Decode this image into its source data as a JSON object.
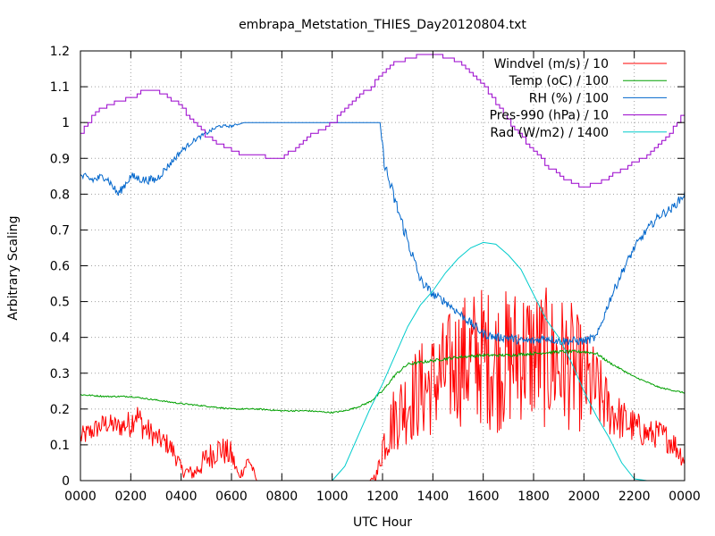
{
  "chart_data": {
    "type": "line",
    "title": "embrapa_Metstation_THIES_Day20120804.txt",
    "xlabel": "UTC Hour",
    "ylabel": "Arbitrary Scaling",
    "xlim": [
      0,
      24
    ],
    "ylim": [
      0,
      1.2
    ],
    "grid": true,
    "legend_position": "top-right",
    "x_tick_labels": [
      "0000",
      "0200",
      "0400",
      "0600",
      "0800",
      "1000",
      "1200",
      "1400",
      "1600",
      "1800",
      "2000",
      "2200",
      "0000"
    ],
    "y_tick_labels": [
      "0",
      "0.1",
      "0.2",
      "0.3",
      "0.4",
      "0.5",
      "0.6",
      "0.7",
      "0.8",
      "0.9",
      "1",
      "1.1",
      "1.2"
    ],
    "series": [
      {
        "name": "Windvel (m/s) / 10",
        "color": "#ff0000",
        "x": [
          0,
          0.5,
          1,
          1.5,
          2,
          2.2,
          2.5,
          3,
          3.5,
          3.8,
          4,
          4.5,
          5,
          5.5,
          6,
          6.3,
          6.7,
          7,
          9,
          10,
          10.5,
          11,
          11.5,
          11.8,
          12,
          12.5,
          13,
          13.5,
          14,
          14.5,
          15,
          15.5,
          16,
          16.5,
          17,
          17.5,
          18,
          18.5,
          19,
          19.5,
          20,
          20.5,
          21,
          21.5,
          22,
          22.5,
          23,
          23.5,
          24
        ],
        "y": [
          0.12,
          0.14,
          0.16,
          0.15,
          0.16,
          0.19,
          0.15,
          0.12,
          0.1,
          0.07,
          0.03,
          0.02,
          0.06,
          0.09,
          0.07,
          0.01,
          0.06,
          0,
          0,
          0,
          0,
          0,
          0,
          0.02,
          0.1,
          0.18,
          0.22,
          0.25,
          0.27,
          0.3,
          0.33,
          0.34,
          0.35,
          0.33,
          0.34,
          0.36,
          0.35,
          0.34,
          0.33,
          0.32,
          0.28,
          0.25,
          0.2,
          0.17,
          0.15,
          0.13,
          0.13,
          0.11,
          0.06
        ],
        "noise": [
          0.03,
          0.03,
          0.03,
          0.03,
          0.04,
          0.04,
          0.04,
          0.03,
          0.03,
          0.03,
          0.02,
          0.02,
          0.04,
          0.04,
          0.04,
          0.01,
          0.03,
          0,
          0,
          0,
          0,
          0,
          0,
          0.02,
          0.06,
          0.1,
          0.12,
          0.14,
          0.15,
          0.16,
          0.18,
          0.2,
          0.2,
          0.2,
          0.2,
          0.2,
          0.2,
          0.2,
          0.2,
          0.18,
          0.15,
          0.12,
          0.08,
          0.06,
          0.05,
          0.04,
          0.04,
          0.04,
          0.03
        ]
      },
      {
        "name": "Temp (oC) / 100",
        "color": "#00a000",
        "x": [
          0,
          1,
          2,
          3,
          4,
          5,
          6,
          7,
          8,
          9,
          10,
          10.5,
          11,
          11.5,
          12,
          12.5,
          13,
          14,
          15,
          16,
          17,
          18,
          19,
          20,
          20.5,
          21,
          22,
          23,
          24
        ],
        "y": [
          0.24,
          0.235,
          0.235,
          0.225,
          0.215,
          0.208,
          0.2,
          0.2,
          0.195,
          0.195,
          0.19,
          0.195,
          0.205,
          0.22,
          0.25,
          0.295,
          0.325,
          0.335,
          0.345,
          0.35,
          0.35,
          0.355,
          0.36,
          0.36,
          0.355,
          0.33,
          0.29,
          0.26,
          0.245
        ],
        "noise": [
          0.002,
          0.002,
          0.002,
          0.002,
          0.002,
          0.002,
          0.002,
          0.002,
          0.002,
          0.002,
          0.002,
          0.002,
          0.002,
          0.003,
          0.003,
          0.004,
          0.004,
          0.004,
          0.004,
          0.004,
          0.004,
          0.004,
          0.004,
          0.004,
          0.004,
          0.003,
          0.002,
          0.002,
          0.002
        ]
      },
      {
        "name": "RH (%) / 100",
        "color": "#0066cc",
        "x": [
          0,
          0.5,
          1,
          1.5,
          2,
          2.5,
          3,
          3.5,
          4,
          4.5,
          5,
          5.5,
          6,
          6.5,
          7,
          8,
          9,
          10,
          11,
          11.9,
          12.05,
          12.2,
          12.5,
          13,
          13.5,
          14,
          14.5,
          15,
          15.5,
          16,
          16.5,
          17,
          17.5,
          18,
          18.5,
          19,
          19.5,
          20,
          20.5,
          21,
          21.5,
          22,
          22.5,
          23,
          23.5,
          24
        ],
        "y": [
          0.85,
          0.84,
          0.85,
          0.8,
          0.85,
          0.84,
          0.84,
          0.88,
          0.92,
          0.95,
          0.97,
          0.99,
          0.99,
          1,
          1,
          1,
          1,
          1,
          1,
          1,
          0.9,
          0.85,
          0.78,
          0.67,
          0.56,
          0.52,
          0.5,
          0.47,
          0.44,
          0.41,
          0.4,
          0.4,
          0.39,
          0.39,
          0.4,
          0.39,
          0.39,
          0.39,
          0.4,
          0.5,
          0.58,
          0.65,
          0.7,
          0.74,
          0.76,
          0.8
        ],
        "noise": [
          0.012,
          0.012,
          0.012,
          0.012,
          0.012,
          0.012,
          0.012,
          0.01,
          0.008,
          0.006,
          0.006,
          0.004,
          0.004,
          0,
          0,
          0,
          0,
          0,
          0,
          0,
          0.02,
          0.02,
          0.02,
          0.02,
          0.015,
          0.012,
          0.012,
          0.012,
          0.012,
          0.012,
          0.012,
          0.012,
          0.012,
          0.012,
          0.012,
          0.012,
          0.012,
          0.012,
          0.012,
          0.012,
          0.012,
          0.012,
          0.012,
          0.012,
          0.012,
          0.012
        ]
      },
      {
        "name": "Pres-990 (hPa) / 10",
        "color": "#9900cc",
        "x": [
          0,
          0.5,
          1,
          1.5,
          2,
          2.5,
          3,
          3.5,
          4,
          4.5,
          5,
          5.5,
          6,
          6.5,
          7,
          7.5,
          8,
          8.5,
          9,
          9.5,
          10,
          10.5,
          11,
          11.5,
          12,
          12.5,
          13,
          13.5,
          14,
          14.5,
          15,
          15.5,
          16,
          16.5,
          17,
          17.5,
          18,
          18.5,
          19,
          19.5,
          20,
          20.5,
          21,
          21.5,
          22,
          22.5,
          23,
          23.5,
          24
        ],
        "y": [
          0.97,
          1.02,
          1.05,
          1.06,
          1.07,
          1.09,
          1.09,
          1.07,
          1.04,
          1.0,
          0.96,
          0.94,
          0.92,
          0.91,
          0.91,
          0.9,
          0.9,
          0.93,
          0.96,
          0.98,
          1.0,
          1.04,
          1.07,
          1.1,
          1.14,
          1.17,
          1.18,
          1.19,
          1.19,
          1.18,
          1.17,
          1.14,
          1.1,
          1.05,
          1.0,
          0.96,
          0.92,
          0.88,
          0.85,
          0.83,
          0.82,
          0.83,
          0.85,
          0.87,
          0.89,
          0.91,
          0.94,
          0.98,
          1.03
        ]
      },
      {
        "name": "Rad (W/m2) / 1400",
        "color": "#00cccc",
        "x": [
          0,
          10,
          10.5,
          11,
          11.5,
          12,
          12.5,
          13,
          13.5,
          14,
          14.5,
          15,
          15.5,
          16,
          16.5,
          17,
          17.5,
          18,
          18.5,
          19,
          19.5,
          20,
          20.5,
          21,
          21.5,
          22,
          22.5,
          24
        ],
        "y": [
          0,
          0,
          0.04,
          0.12,
          0.2,
          0.27,
          0.35,
          0.43,
          0.49,
          0.53,
          0.58,
          0.62,
          0.65,
          0.665,
          0.66,
          0.63,
          0.59,
          0.52,
          0.45,
          0.4,
          0.33,
          0.25,
          0.18,
          0.12,
          0.05,
          0.005,
          0,
          0
        ]
      }
    ]
  }
}
